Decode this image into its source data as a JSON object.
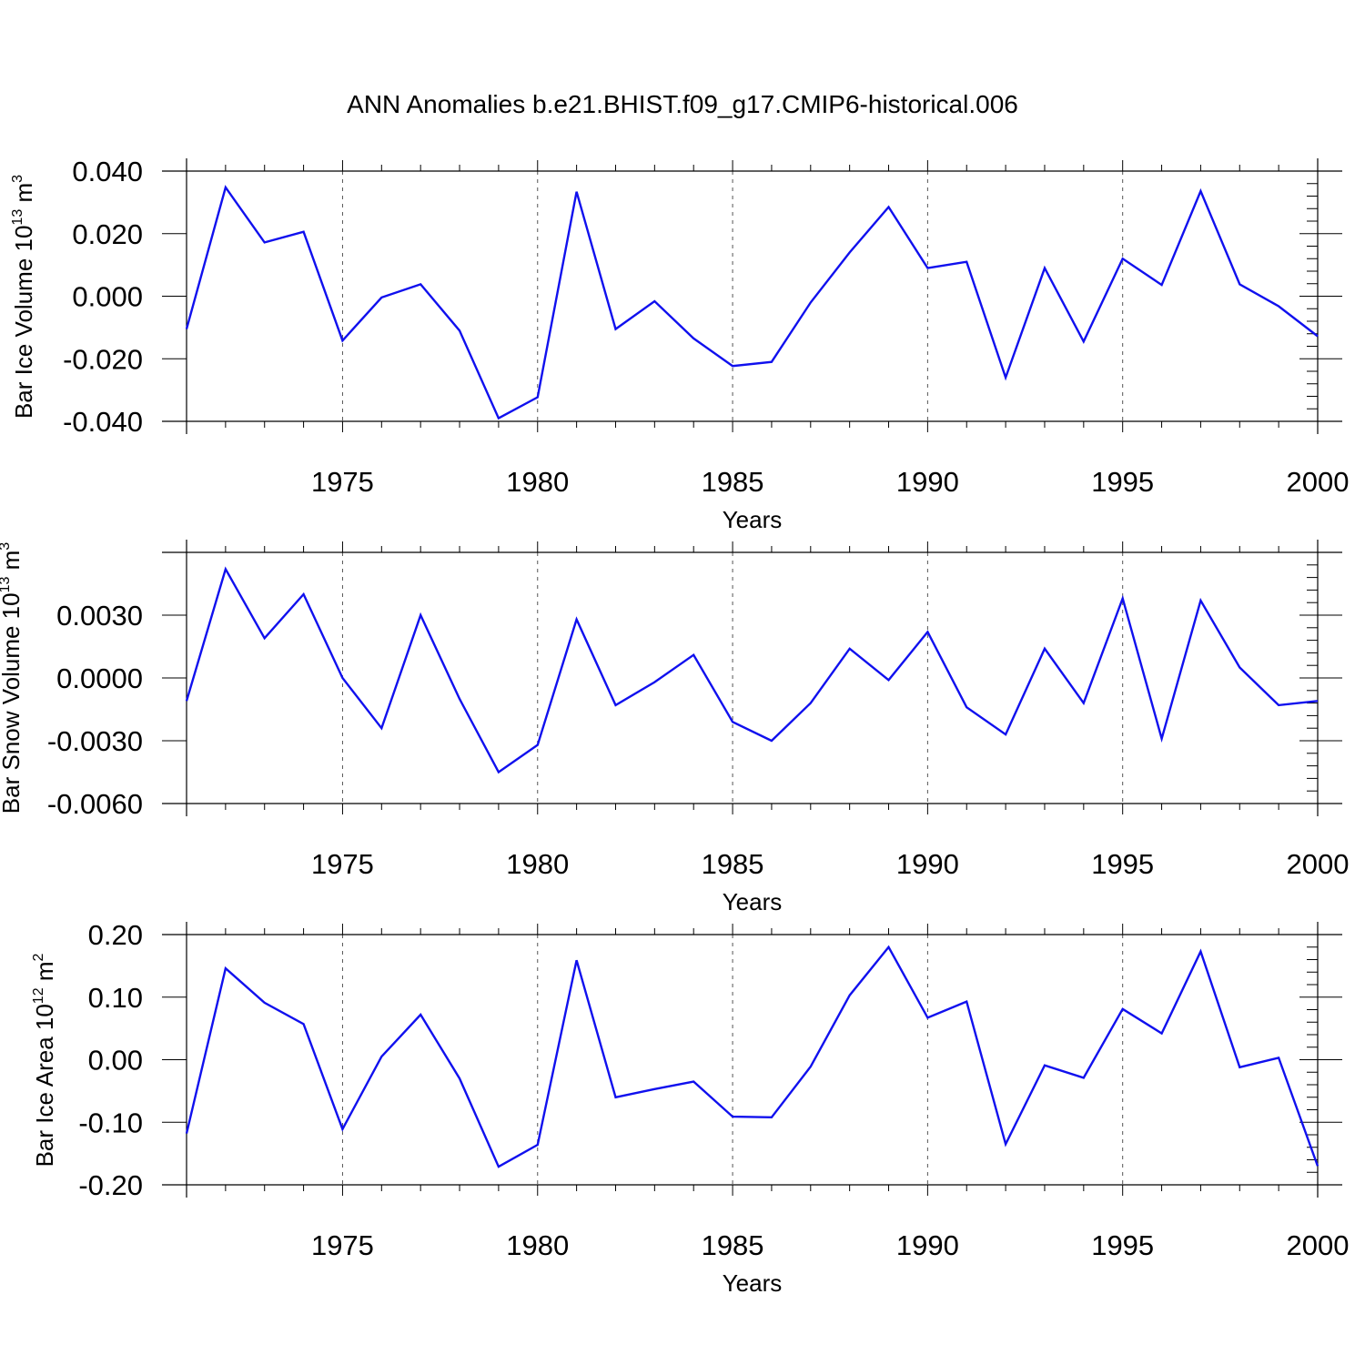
{
  "title": "ANN Anomalies b.e21.BHIST.f09_g17.CMIP6-historical.006",
  "colors": {
    "line": "#1010ee",
    "axis": "#000000",
    "grid": "#555555",
    "background": "#ffffff"
  },
  "chart_data": [
    {
      "type": "line",
      "xlabel": "Years",
      "ylabel": {
        "text": "Bar Ice Volume 10",
        "sup": "13",
        "unit": " m",
        "unit_sup": "3"
      },
      "xlim": [
        1971,
        2000
      ],
      "ylim": [
        -0.04,
        0.04
      ],
      "xticks": [
        1975,
        1980,
        1985,
        1990,
        1995,
        2000
      ],
      "yticks": [
        -0.04,
        -0.02,
        0.0,
        0.02,
        0.04
      ],
      "ytick_labels": [
        "-0.040",
        "-0.020",
        "0.000",
        "0.020",
        "0.040"
      ],
      "grid": "x",
      "series": [
        {
          "x": [
            1971,
            1972,
            1973,
            1974,
            1975,
            1976,
            1977,
            1978,
            1979,
            1980,
            1981,
            1982,
            1983,
            1984,
            1985,
            1986,
            1987,
            1988,
            1989,
            1990,
            1991,
            1992,
            1993,
            1994,
            1995,
            1996,
            1997,
            1998,
            1999,
            2000
          ],
          "y": [
            -0.0105,
            0.0348,
            0.0172,
            0.0206,
            -0.0142,
            -0.0004,
            0.0038,
            -0.011,
            -0.039,
            -0.0323,
            0.0334,
            -0.0105,
            -0.0016,
            -0.0135,
            -0.0223,
            -0.021,
            -0.002,
            0.014,
            0.0285,
            0.009,
            0.011,
            -0.026,
            0.009,
            -0.0145,
            0.012,
            0.0036,
            0.0336,
            0.0038,
            -0.0032,
            -0.0128
          ]
        }
      ]
    },
    {
      "type": "line",
      "xlabel": "Years",
      "ylabel": {
        "text": "Bar Snow Volume 10",
        "sup": "13",
        "unit": " m",
        "unit_sup": "3"
      },
      "xlim": [
        1971,
        2000
      ],
      "ylim": [
        -0.006,
        0.006
      ],
      "xticks": [
        1975,
        1980,
        1985,
        1990,
        1995,
        2000
      ],
      "yticks": [
        -0.006,
        -0.003,
        0.0,
        0.003
      ],
      "ytick_labels": [
        "-0.0060",
        "-0.0030",
        "0.0000",
        "0.0030"
      ],
      "grid": "x",
      "series": [
        {
          "x": [
            1971,
            1972,
            1973,
            1974,
            1975,
            1976,
            1977,
            1978,
            1979,
            1980,
            1981,
            1982,
            1983,
            1984,
            1985,
            1986,
            1987,
            1988,
            1989,
            1990,
            1991,
            1992,
            1993,
            1994,
            1995,
            1996,
            1997,
            1998,
            1999,
            2000
          ],
          "y": [
            -0.0011,
            0.0052,
            0.0019,
            0.004,
            0.0,
            -0.0024,
            0.003,
            -0.001,
            -0.0045,
            -0.0032,
            0.0028,
            -0.0013,
            -0.0002,
            0.0011,
            -0.0021,
            -0.003,
            -0.0012,
            0.0014,
            -0.0001,
            0.0022,
            -0.0014,
            -0.0027,
            0.0014,
            -0.0012,
            0.0038,
            -0.0029,
            0.0037,
            0.0005,
            -0.0013,
            -0.0011
          ]
        }
      ]
    },
    {
      "type": "line",
      "xlabel": "Years",
      "ylabel": {
        "text": "Bar Ice Area 10",
        "sup": "12",
        "unit": " m",
        "unit_sup": "2"
      },
      "xlim": [
        1971,
        2000
      ],
      "ylim": [
        -0.2,
        0.2
      ],
      "xticks": [
        1975,
        1980,
        1985,
        1990,
        1995,
        2000
      ],
      "yticks": [
        -0.2,
        -0.1,
        0.0,
        0.1,
        0.2
      ],
      "ytick_labels": [
        "-0.20",
        "-0.10",
        "0.00",
        "0.10",
        "0.20"
      ],
      "grid": "x",
      "series": [
        {
          "x": [
            1971,
            1972,
            1973,
            1974,
            1975,
            1976,
            1977,
            1978,
            1979,
            1980,
            1981,
            1982,
            1983,
            1984,
            1985,
            1986,
            1987,
            1988,
            1989,
            1990,
            1991,
            1992,
            1993,
            1994,
            1995,
            1996,
            1997,
            1998,
            1999,
            2000
          ],
          "y": [
            -0.118,
            0.146,
            0.091,
            0.057,
            -0.111,
            0.005,
            0.072,
            -0.03,
            -0.171,
            -0.136,
            0.159,
            -0.06,
            -0.047,
            -0.035,
            -0.091,
            -0.092,
            -0.011,
            0.103,
            0.18,
            0.067,
            0.093,
            -0.135,
            -0.009,
            -0.029,
            0.081,
            0.042,
            0.173,
            -0.012,
            0.003,
            -0.17
          ]
        }
      ]
    }
  ]
}
